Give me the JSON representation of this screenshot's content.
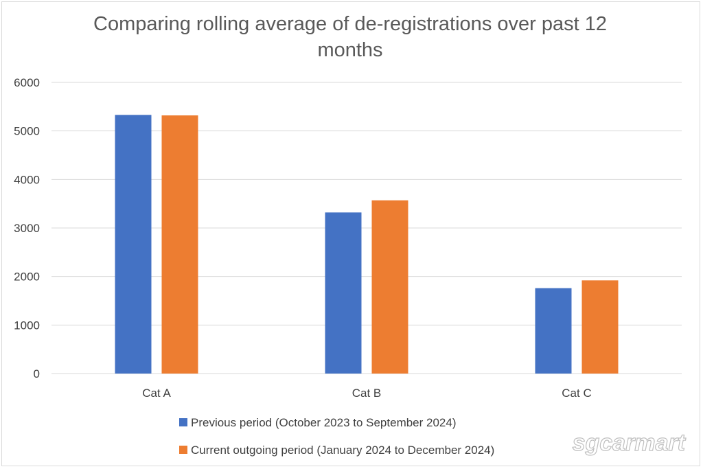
{
  "chart_data": {
    "type": "bar",
    "title": "Comparing rolling average of de-registrations over past 12 months",
    "title_lines": [
      "Comparing rolling average of de-registrations over past 12",
      "months"
    ],
    "categories": [
      "Cat A",
      "Cat B",
      "Cat C"
    ],
    "series": [
      {
        "name": "Previous period (October 2023 to September 2024)",
        "values": [
          5330,
          3320,
          1760
        ],
        "color": "#4472c4"
      },
      {
        "name": "Current outgoing period (January 2024 to December 2024)",
        "values": [
          5320,
          3570,
          1920
        ],
        "color": "#ed7d31"
      }
    ],
    "ylim": [
      0,
      6000
    ],
    "yticks": [
      0,
      1000,
      2000,
      3000,
      4000,
      5000,
      6000
    ],
    "grid": true,
    "legend_position": "bottom",
    "gridline_color": "#d9d9d9"
  },
  "watermark": "sgcarmart"
}
